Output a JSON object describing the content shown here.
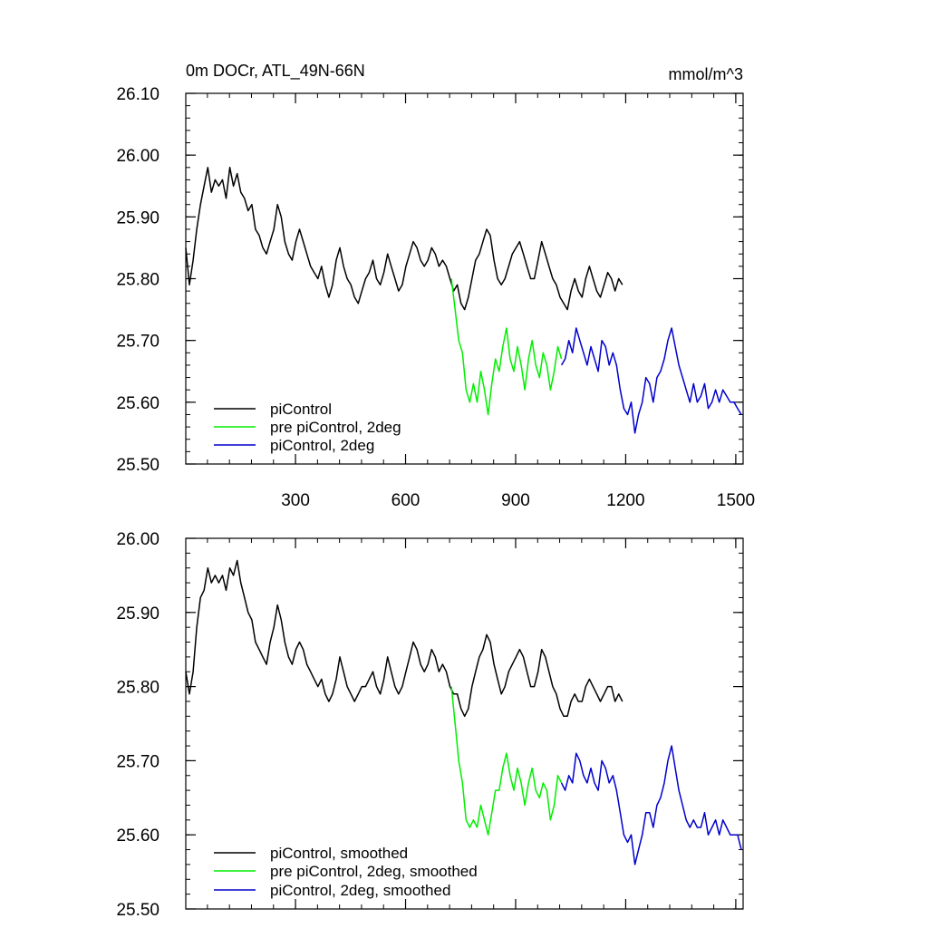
{
  "chart_data": [
    {
      "type": "line",
      "title": "0m DOCr, ATL_49N-66N",
      "units": "mmol/m^3",
      "xlim": [
        1,
        1520
      ],
      "ylim": [
        25.5,
        26.1
      ],
      "xticks": [
        300,
        600,
        900,
        1200,
        1500
      ],
      "yticks": [
        25.5,
        25.6,
        25.7,
        25.8,
        25.9,
        26.0,
        26.1
      ],
      "ytick_labels": [
        "25.50",
        "25.60",
        "25.70",
        "25.80",
        "25.90",
        "26.00",
        "26.10"
      ],
      "xtick_labels": [
        "300",
        "600",
        "900",
        "1200",
        "1500"
      ],
      "legend_position": "bottom-left",
      "grid": false,
      "series": [
        {
          "name": "piControl",
          "color": "#000000",
          "x_start": 1,
          "x_step": 10,
          "values": [
            25.85,
            25.79,
            25.83,
            25.88,
            25.92,
            25.95,
            25.98,
            25.94,
            25.96,
            25.95,
            25.96,
            25.93,
            25.98,
            25.95,
            25.97,
            25.94,
            25.93,
            25.91,
            25.92,
            25.88,
            25.87,
            25.85,
            25.84,
            25.86,
            25.88,
            25.92,
            25.9,
            25.86,
            25.84,
            25.83,
            25.86,
            25.88,
            25.86,
            25.84,
            25.82,
            25.81,
            25.8,
            25.82,
            25.79,
            25.77,
            25.79,
            25.83,
            25.85,
            25.82,
            25.8,
            25.79,
            25.77,
            25.76,
            25.78,
            25.8,
            25.81,
            25.83,
            25.8,
            25.79,
            25.81,
            25.84,
            25.82,
            25.8,
            25.78,
            25.79,
            25.82,
            25.84,
            25.86,
            25.85,
            25.83,
            25.82,
            25.83,
            25.85,
            25.84,
            25.82,
            25.83,
            25.82,
            25.8,
            25.78,
            25.79,
            25.76,
            25.75,
            25.77,
            25.8,
            25.83,
            25.84,
            25.86,
            25.88,
            25.87,
            25.83,
            25.8,
            25.79,
            25.8,
            25.82,
            25.84,
            25.85,
            25.86,
            25.84,
            25.82,
            25.8,
            25.8,
            25.83,
            25.86,
            25.84,
            25.82,
            25.8,
            25.79,
            25.77,
            25.76,
            25.75,
            25.78,
            25.8,
            25.78,
            25.77,
            25.8,
            25.82,
            25.8,
            25.78,
            25.77,
            25.79,
            25.81,
            25.8,
            25.78,
            25.8,
            25.79
          ]
        },
        {
          "name": "pre piControl, 2deg",
          "color": "#00ee00",
          "x_start": 725,
          "x_step": 10,
          "values": [
            25.8,
            25.75,
            25.7,
            25.68,
            25.62,
            25.6,
            25.63,
            25.6,
            25.65,
            25.62,
            25.58,
            25.63,
            25.67,
            25.65,
            25.69,
            25.72,
            25.67,
            25.65,
            25.69,
            25.66,
            25.62,
            25.67,
            25.7,
            25.66,
            25.64,
            25.68,
            25.66,
            25.62,
            25.65,
            25.69,
            25.67
          ]
        },
        {
          "name": "piControl, 2deg",
          "color": "#0000cc",
          "x_start": 1025,
          "x_step": 10,
          "values": [
            25.66,
            25.67,
            25.7,
            25.68,
            25.72,
            25.7,
            25.68,
            25.66,
            25.69,
            25.67,
            25.65,
            25.7,
            25.69,
            25.66,
            25.68,
            25.66,
            25.62,
            25.59,
            25.58,
            25.6,
            25.55,
            25.58,
            25.6,
            25.64,
            25.63,
            25.6,
            25.64,
            25.65,
            25.67,
            25.7,
            25.72,
            25.69,
            25.66,
            25.64,
            25.62,
            25.6,
            25.63,
            25.6,
            25.61,
            25.63,
            25.59,
            25.6,
            25.62,
            25.6,
            25.62,
            25.61,
            25.6,
            25.6,
            25.59,
            25.58
          ]
        }
      ]
    },
    {
      "type": "line",
      "xlim": [
        1,
        1520
      ],
      "ylim": [
        25.5,
        26.0
      ],
      "xticks": [
        300,
        600,
        900,
        1200,
        1500
      ],
      "yticks": [
        25.5,
        25.6,
        25.7,
        25.8,
        25.9,
        26.0
      ],
      "ytick_labels": [
        "25.50",
        "25.60",
        "25.70",
        "25.80",
        "25.90",
        "26.00"
      ],
      "legend_position": "bottom-left",
      "grid": false,
      "series": [
        {
          "name": "piControl, smoothed",
          "color": "#000000",
          "x_start": 1,
          "x_step": 10,
          "values": [
            25.82,
            25.79,
            25.82,
            25.88,
            25.92,
            25.93,
            25.96,
            25.94,
            25.95,
            25.94,
            25.95,
            25.93,
            25.96,
            25.95,
            25.97,
            25.94,
            25.92,
            25.9,
            25.89,
            25.86,
            25.85,
            25.84,
            25.83,
            25.86,
            25.88,
            25.91,
            25.89,
            25.86,
            25.84,
            25.83,
            25.85,
            25.86,
            25.85,
            25.83,
            25.82,
            25.81,
            25.8,
            25.81,
            25.79,
            25.78,
            25.79,
            25.81,
            25.84,
            25.82,
            25.8,
            25.79,
            25.78,
            25.79,
            25.8,
            25.8,
            25.81,
            25.82,
            25.8,
            25.79,
            25.81,
            25.84,
            25.82,
            25.8,
            25.79,
            25.8,
            25.82,
            25.84,
            25.86,
            25.85,
            25.83,
            25.82,
            25.83,
            25.85,
            25.84,
            25.82,
            25.83,
            25.82,
            25.8,
            25.79,
            25.79,
            25.77,
            25.76,
            25.77,
            25.8,
            25.82,
            25.84,
            25.85,
            25.87,
            25.86,
            25.83,
            25.81,
            25.79,
            25.8,
            25.82,
            25.83,
            25.84,
            25.85,
            25.84,
            25.82,
            25.8,
            25.8,
            25.82,
            25.85,
            25.84,
            25.82,
            25.8,
            25.79,
            25.77,
            25.76,
            25.76,
            25.78,
            25.79,
            25.78,
            25.78,
            25.8,
            25.81,
            25.8,
            25.79,
            25.78,
            25.79,
            25.8,
            25.8,
            25.78,
            25.79,
            25.78
          ]
        },
        {
          "name": "pre piControl, 2deg, smoothed",
          "color": "#00ee00",
          "x_start": 725,
          "x_step": 10,
          "values": [
            25.8,
            25.75,
            25.7,
            25.67,
            25.62,
            25.61,
            25.62,
            25.61,
            25.64,
            25.62,
            25.6,
            25.63,
            25.66,
            25.66,
            25.69,
            25.71,
            25.68,
            25.66,
            25.69,
            25.67,
            25.64,
            25.67,
            25.69,
            25.66,
            25.65,
            25.67,
            25.66,
            25.62,
            25.64,
            25.68,
            25.67
          ]
        },
        {
          "name": "piControl, 2deg, smoothed",
          "color": "#0000cc",
          "x_start": 1025,
          "x_step": 10,
          "values": [
            25.67,
            25.66,
            25.68,
            25.67,
            25.71,
            25.7,
            25.68,
            25.67,
            25.69,
            25.67,
            25.66,
            25.7,
            25.69,
            25.67,
            25.68,
            25.66,
            25.63,
            25.6,
            25.59,
            25.6,
            25.56,
            25.58,
            25.6,
            25.63,
            25.63,
            25.61,
            25.64,
            25.65,
            25.67,
            25.7,
            25.72,
            25.69,
            25.66,
            25.64,
            25.62,
            25.61,
            25.62,
            25.61,
            25.61,
            25.63,
            25.6,
            25.61,
            25.62,
            25.6,
            25.62,
            25.61,
            25.6,
            25.6,
            25.6,
            25.58
          ]
        }
      ]
    }
  ]
}
